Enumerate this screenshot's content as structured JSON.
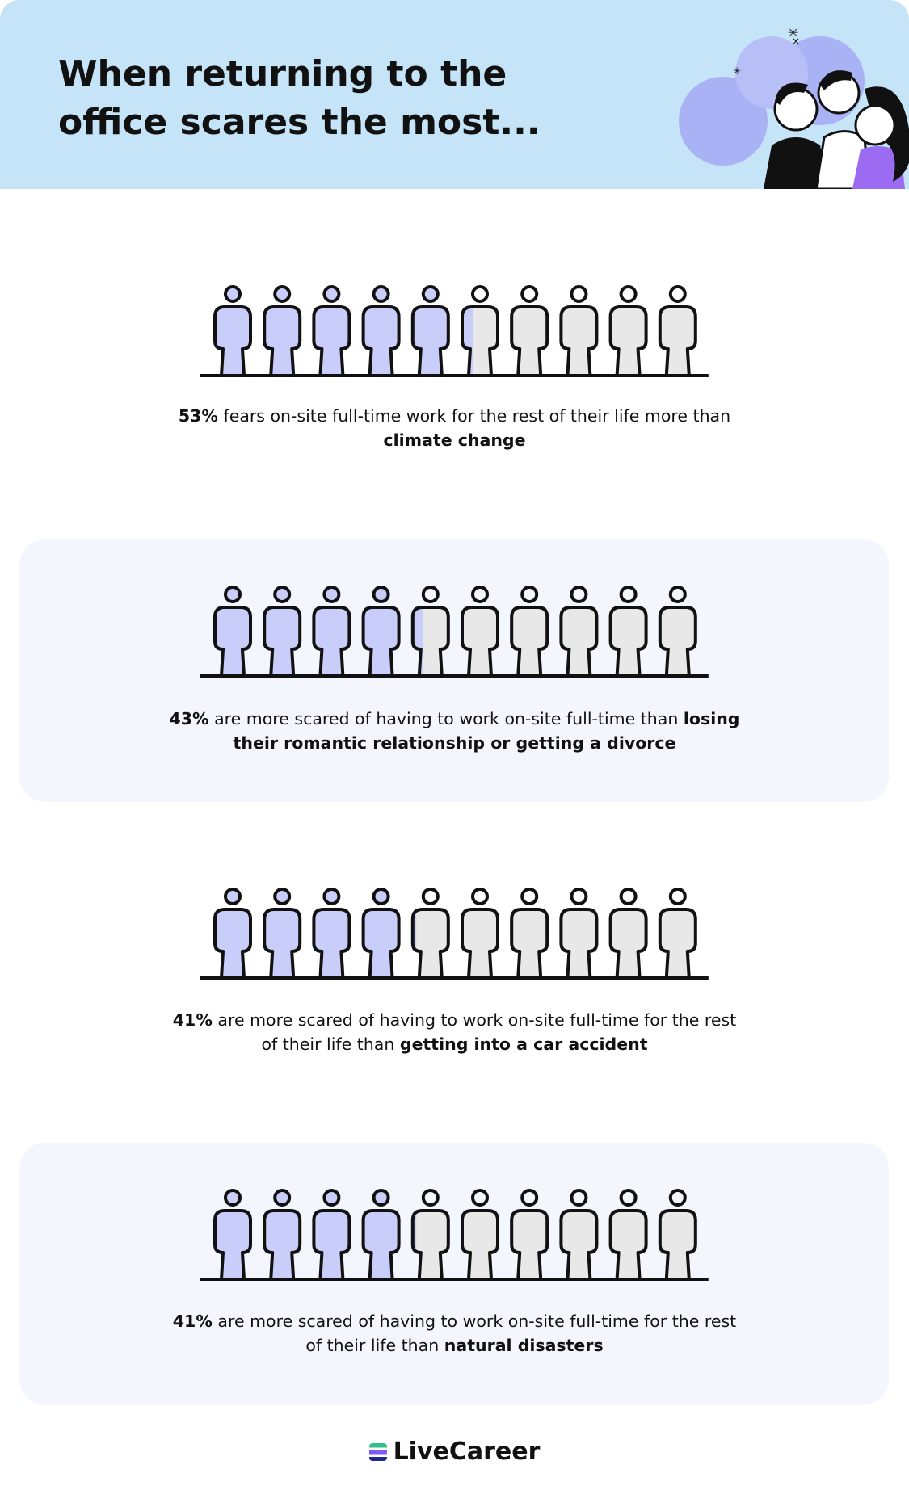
{
  "header": {
    "title": "When returning to the office scares the most..."
  },
  "chart_data": [
    {
      "type": "pictogram",
      "values": [
        53
      ],
      "value_labels": [
        "53%"
      ],
      "ylim": [
        0,
        100
      ],
      "color": "#c9cdfa",
      "empty_color": "#e8e8e8",
      "text": "fears on-site full-time work for the rest of their life more than",
      "emphasis": "climate change"
    },
    {
      "type": "pictogram",
      "values": [
        43
      ],
      "value_labels": [
        "43%"
      ],
      "ylim": [
        0,
        100
      ],
      "color": "#c9cdfa",
      "empty_color": "#e8e8e8",
      "text": "are more scared of having to work on-site full-time than",
      "emphasis": "losing their romantic relationship or getting a divorce"
    },
    {
      "type": "pictogram",
      "values": [
        41
      ],
      "value_labels": [
        "41%"
      ],
      "ylim": [
        0,
        100
      ],
      "color": "#c9cdfa",
      "empty_color": "#e8e8e8",
      "text": "are more scared of having to work on-site full-time for the rest of their life than",
      "emphasis": "getting into a car accident"
    },
    {
      "type": "pictogram",
      "values": [
        41
      ],
      "value_labels": [
        "41%"
      ],
      "ylim": [
        0,
        100
      ],
      "color": "#c9cdfa",
      "empty_color": "#e8e8e8",
      "text": "are more scared of having to work on-site full-time for the rest of their life than",
      "emphasis": "natural disasters"
    }
  ],
  "footer": {
    "logo": "LiveCareer"
  }
}
